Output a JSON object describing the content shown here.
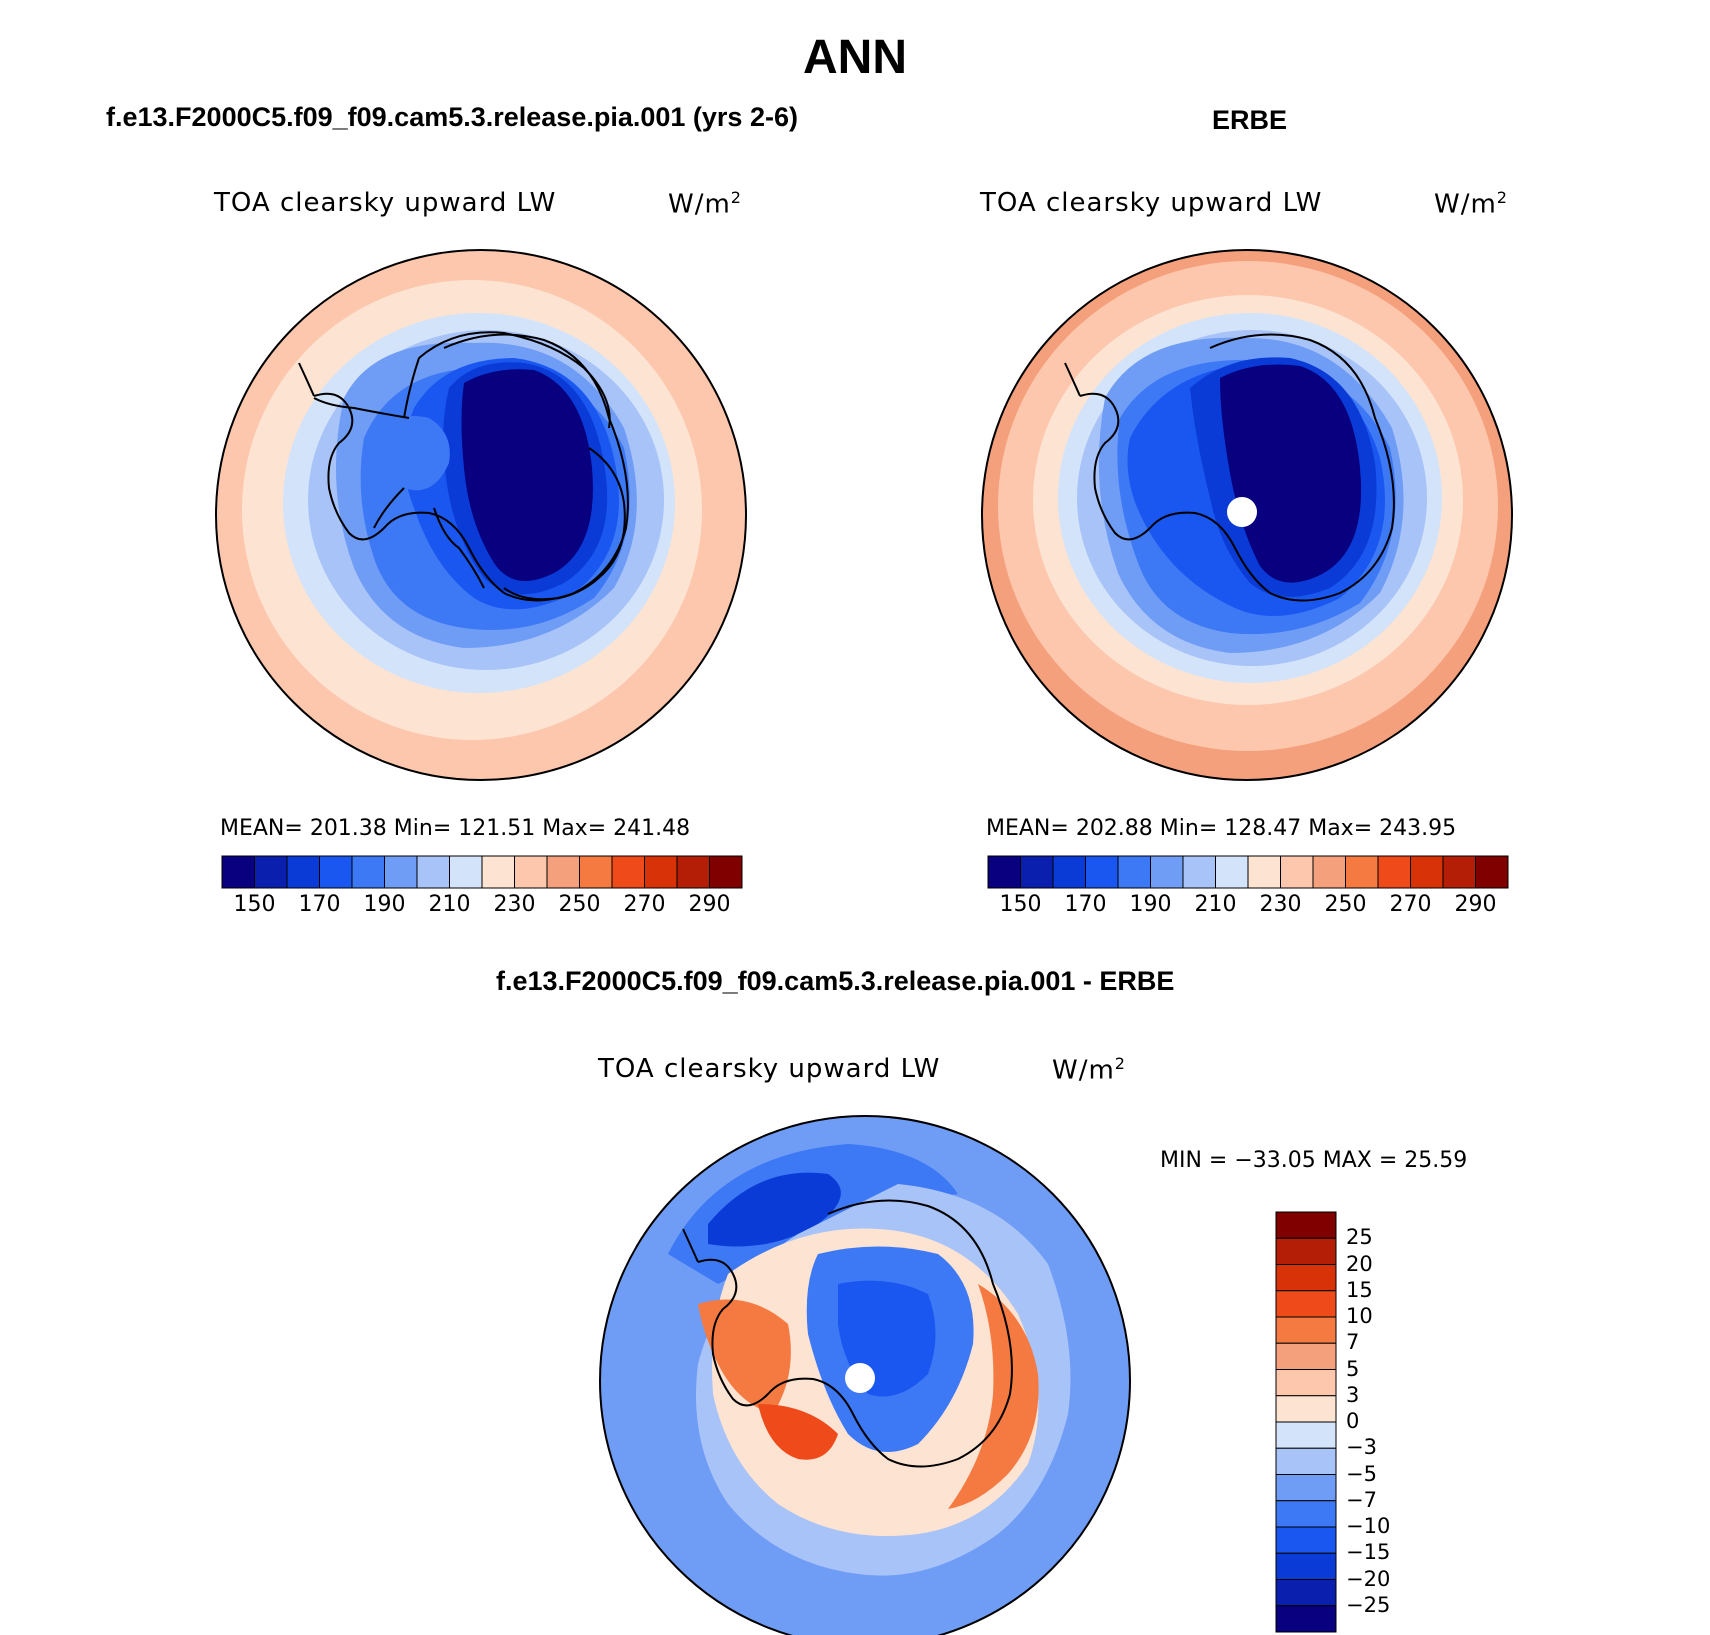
{
  "figure": {
    "title": "ANN"
  },
  "panel_left": {
    "title": "f.e13.F2000C5.f09_f09.cam5.3.release.pia.001 (yrs 2-6)",
    "variable": "TOA clearsky upward LW",
    "units": "W/m",
    "units_sup": "2",
    "stats": "MEAN= 201.38   Min= 121.51   Max= 241.48"
  },
  "panel_right": {
    "title": "ERBE",
    "variable": "TOA clearsky upward LW",
    "units": "W/m",
    "units_sup": "2",
    "stats": "MEAN= 202.88   Min= 128.47   Max= 243.95"
  },
  "panel_diff": {
    "title": "f.e13.F2000C5.f09_f09.cam5.3.release.pia.001 - ERBE",
    "variable": "TOA clearsky upward LW",
    "units": "W/m",
    "units_sup": "2",
    "stats": "MIN = −33.05 MAX =   25.59"
  },
  "colorbar_abs": {
    "ticks": [
      "150",
      "170",
      "190",
      "210",
      "230",
      "250",
      "270",
      "290"
    ],
    "colors": [
      "#08007f",
      "#0a1fae",
      "#0b3bd6",
      "#1a57f0",
      "#3d78f5",
      "#6f9cf5",
      "#a8c3f7",
      "#d3e3f9",
      "#fde3d2",
      "#fcc7ad",
      "#f5a07c",
      "#f57a42",
      "#ef4a1a",
      "#d83209",
      "#b51e06",
      "#800000"
    ]
  },
  "colorbar_diff": {
    "ticks": [
      "25",
      "20",
      "15",
      "10",
      "7",
      "5",
      "3",
      "0",
      "−3",
      "−5",
      "−7",
      "−10",
      "−15",
      "−20",
      "−25"
    ],
    "colors": [
      "#800000",
      "#b51e06",
      "#d83209",
      "#ef4a1a",
      "#f57a42",
      "#f5a07c",
      "#fcc7ad",
      "#fde3d2",
      "#d3e3f9",
      "#a8c3f7",
      "#6f9cf5",
      "#3d78f5",
      "#1a57f0",
      "#0b3bd6",
      "#0a1fae",
      "#08007f"
    ]
  },
  "colors": {
    "ocean_warm": "#fcc7ad",
    "antarctica_core": "#08007f",
    "coastline": "#000000"
  }
}
